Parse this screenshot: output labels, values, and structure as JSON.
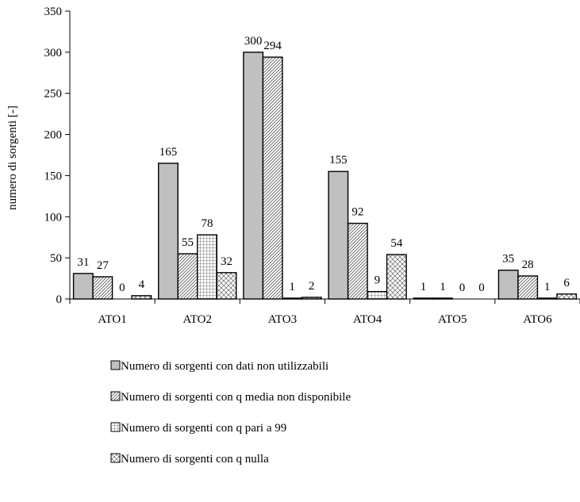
{
  "chart_data": {
    "type": "bar",
    "title": "",
    "xlabel": "",
    "ylabel": "numero di sorgenti [-]",
    "ylim": [
      0,
      350
    ],
    "yticks": [
      0,
      50,
      100,
      150,
      200,
      250,
      300,
      350
    ],
    "grid": false,
    "legend_position": "bottom",
    "categories": [
      "ATO1",
      "ATO2",
      "ATO3",
      "ATO4",
      "ATO5",
      "ATO6"
    ],
    "series": [
      {
        "name": "Numero di sorgenti con dati non utilizzabili",
        "values": [
          31,
          165,
          300,
          155,
          1,
          35
        ],
        "labels": [
          "31",
          "165",
          "300",
          "155",
          "1",
          "35"
        ],
        "pattern": "solid-gray",
        "color": "#c0c0c0"
      },
      {
        "name": "Numero di sorgenti con q media non disponibile",
        "values": [
          27,
          55,
          294,
          92,
          1,
          28
        ],
        "labels": [
          "27",
          "55",
          "294",
          "92",
          "1",
          "28"
        ],
        "pattern": "diagonal",
        "color": "#ffffff"
      },
      {
        "name": "Numero di sorgenti con q pari a 99",
        "values": [
          0,
          78,
          1,
          9,
          0,
          1
        ],
        "labels": [
          "0",
          "78",
          "1",
          "9",
          "0",
          "1"
        ],
        "pattern": "grid",
        "color": "#ffffff"
      },
      {
        "name": "Numero di sorgenti con q nulla",
        "values": [
          4,
          32,
          2,
          54,
          0,
          6
        ],
        "labels": [
          "4",
          "32",
          "2",
          "54",
          "0",
          "6"
        ],
        "pattern": "crosshatch",
        "color": "#ffffff"
      }
    ]
  }
}
